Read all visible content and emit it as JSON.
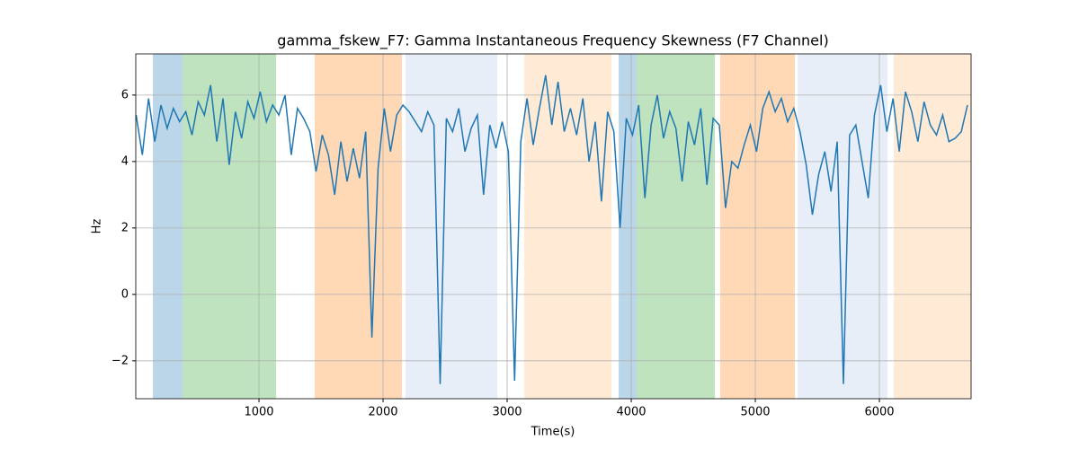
{
  "chart_data": {
    "type": "line",
    "title": "gamma_fskew_F7: Gamma Instantaneous Frequency Skewness (F7 Channel)",
    "x_label": "Time(s)",
    "y_label": "Hz",
    "xlim": [
      7,
      6739
    ],
    "ylim": [
      -3.14,
      7.24
    ],
    "xticks": [
      1000,
      2000,
      3000,
      4000,
      5000,
      6000
    ],
    "yticks": [
      {
        "value": -2,
        "label": "−2"
      },
      0,
      2,
      4,
      6
    ],
    "grid": true,
    "spans": [
      {
        "start": 145,
        "end": 384,
        "color": "#1f77b44d"
      },
      {
        "start": 384,
        "end": 1138,
        "color": "#2ca02c4d"
      },
      {
        "start": 1449,
        "end": 2152,
        "color": "#ff7f0e4d"
      },
      {
        "start": 2181,
        "end": 2920,
        "color": "#aec7e84d"
      },
      {
        "start": 3138,
        "end": 3841,
        "color": "#ffbb784d"
      },
      {
        "start": 3899,
        "end": 4043,
        "color": "#1f77b44d"
      },
      {
        "start": 4043,
        "end": 4674,
        "color": "#2ca02c4d"
      },
      {
        "start": 4717,
        "end": 5319,
        "color": "#ff7f0e4d"
      },
      {
        "start": 5341,
        "end": 6065,
        "color": "#aec7e84d"
      },
      {
        "start": 6116,
        "end": 6739,
        "color": "#ffbb784d"
      }
    ],
    "x": [
      10,
      60,
      110,
      160,
      210,
      260,
      310,
      360,
      410,
      460,
      510,
      560,
      610,
      660,
      710,
      760,
      810,
      860,
      910,
      960,
      1010,
      1060,
      1110,
      1160,
      1210,
      1260,
      1310,
      1360,
      1410,
      1460,
      1510,
      1560,
      1610,
      1660,
      1710,
      1760,
      1810,
      1860,
      1910,
      1960,
      2010,
      2060,
      2110,
      2160,
      2210,
      2260,
      2310,
      2360,
      2410,
      2460,
      2510,
      2560,
      2610,
      2660,
      2710,
      2760,
      2810,
      2860,
      2910,
      2960,
      3010,
      3060,
      3110,
      3160,
      3210,
      3260,
      3310,
      3360,
      3410,
      3460,
      3510,
      3560,
      3610,
      3660,
      3710,
      3760,
      3810,
      3860,
      3910,
      3960,
      4010,
      4060,
      4110,
      4160,
      4210,
      4260,
      4310,
      4360,
      4410,
      4460,
      4510,
      4560,
      4610,
      4660,
      4710,
      4760,
      4810,
      4860,
      4910,
      4960,
      5010,
      5060,
      5110,
      5160,
      5210,
      5260,
      5310,
      5360,
      5410,
      5460,
      5510,
      5560,
      5610,
      5660,
      5710,
      5760,
      5810,
      5860,
      5910,
      5960,
      6010,
      6060,
      6110,
      6160,
      6210,
      6260,
      6310,
      6360,
      6410,
      6460,
      6510,
      6560,
      6610,
      6660,
      6710
    ],
    "series": [
      {
        "color": "#1f77b4",
        "values": [
          5.4,
          4.2,
          5.9,
          4.6,
          5.7,
          5.0,
          5.6,
          5.2,
          5.5,
          4.8,
          5.8,
          5.4,
          6.3,
          4.6,
          5.9,
          3.9,
          5.5,
          4.7,
          5.8,
          5.3,
          6.1,
          5.2,
          5.7,
          5.4,
          6.0,
          4.2,
          5.6,
          5.3,
          4.9,
          3.7,
          4.8,
          4.2,
          3.0,
          4.6,
          3.4,
          4.4,
          3.5,
          4.9,
          -1.3,
          3.8,
          5.6,
          4.3,
          5.4,
          5.7,
          5.5,
          5.2,
          4.9,
          5.5,
          5.1,
          -2.7,
          5.3,
          4.9,
          5.6,
          4.3,
          5.0,
          5.4,
          3.0,
          5.1,
          4.4,
          5.2,
          4.3,
          -2.6,
          4.6,
          5.9,
          4.5,
          5.6,
          6.6,
          5.1,
          6.4,
          4.9,
          5.6,
          4.8,
          5.9,
          4.0,
          5.2,
          2.8,
          5.5,
          4.9,
          2.0,
          5.3,
          4.8,
          5.7,
          2.9,
          5.1,
          6.0,
          4.7,
          5.5,
          5.0,
          3.4,
          5.2,
          4.5,
          5.6,
          3.3,
          5.3,
          5.1,
          2.6,
          4.0,
          3.8,
          4.5,
          5.1,
          4.3,
          5.6,
          6.1,
          5.5,
          5.9,
          5.2,
          5.6,
          4.9,
          3.9,
          2.4,
          3.6,
          4.3,
          3.1,
          4.6,
          -2.7,
          4.8,
          5.1,
          4.0,
          2.9,
          5.4,
          6.3,
          4.9,
          5.9,
          4.3,
          6.1,
          5.5,
          4.6,
          5.8,
          5.1,
          4.8,
          5.4,
          4.6,
          4.7,
          4.9,
          5.7
        ]
      }
    ]
  }
}
